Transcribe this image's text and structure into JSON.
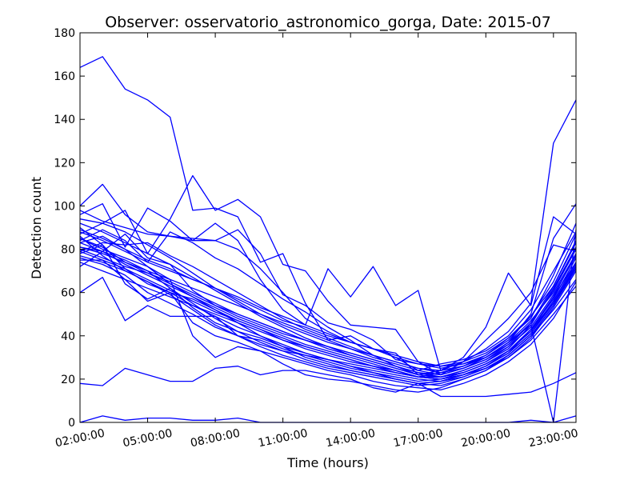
{
  "colors": {
    "series": "#0000ff",
    "axes": "#000000",
    "background": "#ffffff"
  },
  "chart_data": {
    "type": "line",
    "title": "Observer: osservatorio_astronomico_gorga, Date: 2015-07",
    "xlabel": "Time (hours)",
    "ylabel": "Detection count",
    "xlim": [
      2,
      24
    ],
    "ylim": [
      0,
      180
    ],
    "grid": false,
    "x": [
      2,
      3,
      4,
      5,
      6,
      7,
      8,
      9,
      10,
      11,
      12,
      13,
      14,
      15,
      16,
      17,
      18,
      19,
      20,
      21,
      22,
      23,
      24
    ],
    "x_ticks": [
      {
        "value": 2,
        "label": "02:00:00"
      },
      {
        "value": 5,
        "label": "05:00:00"
      },
      {
        "value": 8,
        "label": "08:00:00"
      },
      {
        "value": 11,
        "label": "11:00:00"
      },
      {
        "value": 14,
        "label": "14:00:00"
      },
      {
        "value": 17,
        "label": "17:00:00"
      },
      {
        "value": 20,
        "label": "20:00:00"
      },
      {
        "value": 23,
        "label": "23:00:00"
      }
    ],
    "y_ticks": [
      0,
      20,
      40,
      60,
      80,
      100,
      120,
      140,
      160,
      180
    ],
    "series": [
      {
        "values": [
          164,
          169,
          154,
          149,
          141,
          98,
          99,
          95,
          74,
          78,
          55,
          38,
          40,
          34,
          32,
          22,
          24,
          28,
          34,
          42,
          55,
          129,
          149
        ]
      },
      {
        "values": [
          100,
          110,
          96,
          88,
          86,
          84,
          92,
          84,
          66,
          52,
          45,
          71,
          58,
          72,
          54,
          61,
          24,
          30,
          44,
          69,
          54,
          95,
          87
        ]
      },
      {
        "values": [
          18,
          17,
          25,
          22,
          19,
          19,
          25,
          26,
          22,
          24,
          24,
          22,
          20,
          16,
          14,
          18,
          12,
          12,
          12,
          13,
          14,
          18,
          23
        ]
      },
      {
        "values": [
          0,
          3,
          1,
          2,
          2,
          1,
          1,
          2,
          0,
          0,
          0,
          0,
          0,
          0,
          0,
          0,
          0,
          0,
          0,
          0,
          1,
          0,
          3
        ]
      },
      {
        "values": [
          87,
          92,
          98,
          78,
          94,
          114,
          98,
          103,
          95,
          73,
          70,
          56,
          45,
          44,
          43,
          28,
          22,
          28,
          38,
          48,
          60,
          82,
          79
        ]
      },
      {
        "values": [
          96,
          101,
          81,
          99,
          93,
          84,
          84,
          89,
          78,
          59,
          54,
          46,
          43,
          38,
          29,
          27,
          26,
          27,
          30,
          37,
          50,
          85,
          101
        ]
      },
      {
        "values": [
          98,
          93,
          90,
          87,
          86,
          85,
          84,
          80,
          71,
          60,
          48,
          42,
          37,
          34,
          30,
          24,
          27,
          29,
          33,
          40,
          52,
          70,
          88
        ]
      },
      {
        "values": [
          84,
          89,
          84,
          74,
          88,
          83,
          76,
          71,
          64,
          57,
          51,
          44,
          38,
          31,
          26,
          22,
          24,
          26,
          31,
          39,
          48,
          68,
          92
        ]
      },
      {
        "values": [
          81,
          78,
          74,
          70,
          66,
          62,
          58,
          54,
          50,
          46,
          42,
          38,
          34,
          30,
          27,
          24,
          22,
          25,
          29,
          35,
          46,
          63,
          84
        ]
      },
      {
        "values": [
          78,
          82,
          64,
          57,
          62,
          53,
          46,
          42,
          39,
          35,
          32,
          29,
          26,
          23,
          21,
          19,
          20,
          23,
          27,
          33,
          42,
          58,
          74
        ]
      },
      {
        "values": [
          76,
          73,
          68,
          60,
          55,
          50,
          44,
          40,
          36,
          33,
          31,
          28,
          25,
          23,
          20,
          18,
          19,
          22,
          26,
          32,
          43,
          55,
          72
        ]
      },
      {
        "values": [
          90,
          82,
          71,
          64,
          60,
          57,
          52,
          47,
          43,
          38,
          34,
          31,
          28,
          26,
          24,
          21,
          23,
          26,
          30,
          37,
          47,
          60,
          78
        ]
      },
      {
        "values": [
          85,
          80,
          76,
          72,
          66,
          40,
          30,
          35,
          33,
          27,
          22,
          20,
          19,
          17,
          15,
          14,
          16,
          20,
          24,
          31,
          40,
          52,
          66
        ]
      },
      {
        "values": [
          72,
          79,
          87,
          76,
          73,
          61,
          54,
          49,
          45,
          41,
          38,
          35,
          32,
          29,
          26,
          23,
          21,
          24,
          28,
          34,
          45,
          62,
          81
        ]
      },
      {
        "values": [
          88,
          84,
          79,
          74,
          70,
          66,
          62,
          57,
          52,
          47,
          44,
          40,
          37,
          34,
          30,
          27,
          25,
          27,
          31,
          38,
          49,
          65,
          87
        ]
      },
      {
        "values": [
          60,
          67,
          47,
          54,
          49,
          49,
          49,
          40,
          38,
          34,
          31,
          29,
          27,
          25,
          23,
          21,
          20,
          22,
          25,
          30,
          38,
          50,
          63
        ]
      },
      {
        "values": [
          75,
          75,
          66,
          56,
          60,
          46,
          40,
          37,
          33,
          30,
          27,
          24,
          22,
          19,
          17,
          16,
          15,
          18,
          22,
          28,
          36,
          48,
          65
        ]
      },
      {
        "values": [
          83,
          86,
          80,
          72,
          64,
          58,
          52,
          46,
          40,
          35,
          30,
          27,
          24,
          22,
          20,
          18,
          19,
          21,
          25,
          31,
          40,
          54,
          72
        ]
      },
      {
        "values": [
          79,
          83,
          82,
          83,
          77,
          72,
          66,
          60,
          54,
          48,
          43,
          39,
          35,
          31,
          28,
          25,
          23,
          25,
          29,
          36,
          46,
          61,
          80
        ]
      },
      {
        "values": [
          92,
          88,
          83,
          78,
          73,
          67,
          61,
          55,
          49,
          44,
          39,
          35,
          31,
          28,
          25,
          22,
          21,
          23,
          27,
          33,
          43,
          57,
          76
        ]
      },
      {
        "values": [
          80,
          76,
          72,
          69,
          65,
          60,
          55,
          50,
          46,
          42,
          38,
          34,
          31,
          28,
          25,
          22,
          21,
          24,
          28,
          35,
          44,
          59,
          77
        ]
      },
      {
        "values": [
          86,
          77,
          70,
          65,
          60,
          54,
          49,
          44,
          40,
          36,
          32,
          29,
          26,
          24,
          22,
          20,
          19,
          22,
          26,
          32,
          41,
          56,
          74
        ]
      },
      {
        "values": [
          81,
          79,
          75,
          70,
          62,
          55,
          48,
          42,
          37,
          33,
          29,
          26,
          24,
          22,
          20,
          18,
          17,
          20,
          24,
          30,
          39,
          53,
          70
        ]
      },
      {
        "values": [
          77,
          74,
          70,
          65,
          59,
          52,
          45,
          40,
          35,
          31,
          28,
          25,
          23,
          21,
          19,
          17,
          18,
          21,
          25,
          31,
          40,
          54,
          71
        ]
      },
      {
        "values": [
          94,
          92,
          88,
          82,
          76,
          69,
          62,
          56,
          50,
          45,
          41,
          37,
          34,
          31,
          28,
          25,
          24,
          26,
          30,
          36,
          46,
          61,
          81
        ]
      },
      {
        "values": [
          83,
          79,
          73,
          68,
          63,
          58,
          53,
          48,
          44,
          40,
          36,
          33,
          30,
          27,
          24,
          21,
          20,
          22,
          26,
          33,
          43,
          58,
          78
        ]
      },
      {
        "values": [
          74,
          70,
          66,
          62,
          58,
          54,
          50,
          46,
          42,
          38,
          35,
          32,
          29,
          26,
          23,
          21,
          20,
          22,
          26,
          32,
          41,
          55,
          73
        ]
      },
      {
        "values": [
          89,
          85,
          80,
          75,
          71,
          66,
          62,
          58,
          53,
          49,
          45,
          41,
          37,
          34,
          31,
          28,
          26,
          28,
          32,
          39,
          49,
          63,
          83
        ]
      },
      {
        "values": [
          85,
          81,
          74,
          69,
          64,
          59,
          54,
          50,
          46,
          42,
          38,
          35,
          32,
          29,
          26,
          23,
          22,
          25,
          30,
          37,
          45,
          0,
          89
        ]
      },
      {
        "values": [
          79,
          75,
          71,
          66,
          61,
          56,
          51,
          47,
          43,
          39,
          35,
          32,
          29,
          26,
          24,
          21,
          21,
          23,
          27,
          33,
          42,
          56,
          74
        ]
      }
    ]
  }
}
